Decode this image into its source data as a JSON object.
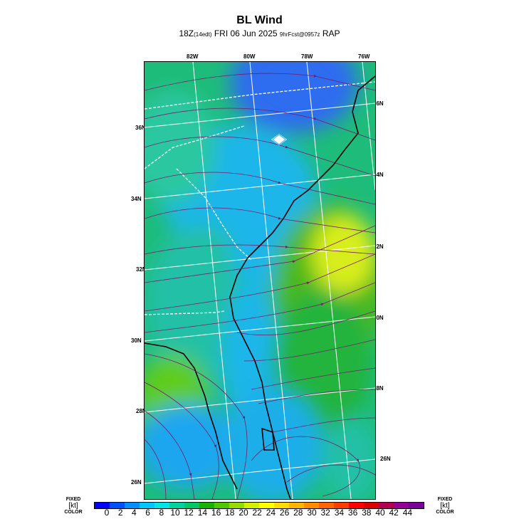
{
  "title": "BL Wind",
  "subtitle": {
    "main_left": "18Z",
    "edt": "(14edt)",
    "main_right": "FRI 06 Jun 2025",
    "fcst": "9hrFcst@0957z",
    "model": "RAP"
  },
  "lon_labels": [
    "82W",
    "80W",
    "78W",
    "76W"
  ],
  "lat_labels_left": [
    "36N",
    "34N",
    "32N",
    "30N",
    "28N",
    "26N"
  ],
  "lat_labels_right": [
    "36N",
    "34N",
    "32N",
    "30N",
    "28N",
    "26N"
  ],
  "colorbar": {
    "left_label": [
      "FIXED",
      "[kt]",
      "COLOR"
    ],
    "right_label": [
      "FIXED",
      "[kt]",
      "COLOR"
    ],
    "ticks": [
      "0",
      "2",
      "4",
      "6",
      "8",
      "10",
      "12",
      "14",
      "16",
      "18",
      "20",
      "22",
      "24",
      "26",
      "28",
      "30",
      "32",
      "34",
      "36",
      "38",
      "40",
      "42",
      "44"
    ],
    "colors": [
      "#0000ff",
      "#0050ff",
      "#0090ff",
      "#00c8ff",
      "#00e6e6",
      "#00d2a0",
      "#00c864",
      "#14b400",
      "#50c800",
      "#96dc00",
      "#d2f000",
      "#ffff00",
      "#ffdc00",
      "#ffb400",
      "#ff8c00",
      "#ff6400",
      "#ff3c00",
      "#ff0000",
      "#dc0000",
      "#b40050",
      "#960096",
      "#780096"
    ]
  }
}
